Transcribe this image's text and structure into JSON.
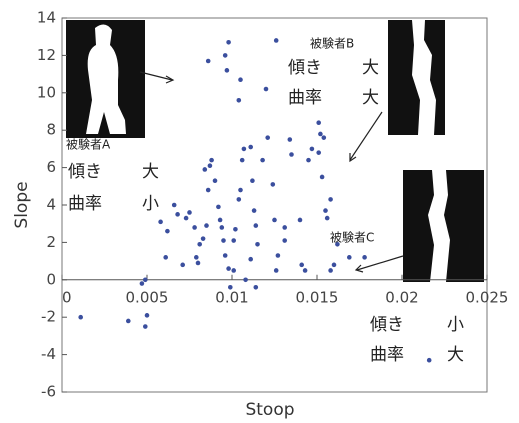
{
  "chart_data": {
    "type": "scatter",
    "x_label": "Stoop",
    "y_label": "Slope",
    "color": "#3b4f9e",
    "xlim": [
      0,
      0.025
    ],
    "ylim": [
      -6,
      14
    ],
    "xticks": [
      0,
      0.005,
      0.01,
      0.015,
      0.02,
      0.025
    ],
    "yticks": [
      -6,
      -4,
      -2,
      0,
      2,
      4,
      6,
      8,
      10,
      12,
      14
    ],
    "x": [
      0.0011,
      0.0039,
      0.0049,
      0.005,
      0.0049,
      0.0047,
      0.0061,
      0.0062,
      0.0058,
      0.0066,
      0.0068,
      0.0071,
      0.0073,
      0.0075,
      0.0078,
      0.0079,
      0.008,
      0.0081,
      0.0083,
      0.0085,
      0.0086,
      0.0084,
      0.0087,
      0.0088,
      0.009,
      0.0092,
      0.0093,
      0.0094,
      0.0095,
      0.0096,
      0.0098,
      0.0099,
      0.0101,
      0.0101,
      0.0102,
      0.0104,
      0.0105,
      0.0106,
      0.0107,
      0.0104,
      0.0105,
      0.0096,
      0.0098,
      0.0097,
      0.0086,
      0.0111,
      0.0112,
      0.0113,
      0.0114,
      0.0115,
      0.0111,
      0.0118,
      0.012,
      0.0121,
      0.0124,
      0.0125,
      0.0126,
      0.0127,
      0.0131,
      0.0131,
      0.0134,
      0.0135,
      0.0126,
      0.0108,
      0.0114,
      0.014,
      0.0141,
      0.0143,
      0.0145,
      0.0147,
      0.0151,
      0.0152,
      0.0153,
      0.0154,
      0.0155,
      0.0156,
      0.0151,
      0.0158,
      0.016,
      0.0162,
      0.0158,
      0.0169,
      0.0178,
      0.0216
    ],
    "values": [
      -2.0,
      -2.2,
      -2.5,
      -1.9,
      0.0,
      -0.2,
      1.2,
      2.6,
      3.1,
      4.0,
      3.5,
      0.8,
      3.3,
      3.6,
      2.8,
      1.2,
      0.9,
      1.9,
      2.2,
      2.9,
      4.8,
      5.9,
      6.1,
      6.4,
      5.3,
      3.9,
      3.2,
      2.8,
      2.1,
      1.3,
      0.6,
      -0.4,
      0.5,
      2.1,
      2.7,
      4.3,
      4.8,
      6.4,
      7.0,
      9.6,
      10.7,
      12.0,
      12.7,
      11.2,
      11.7,
      7.1,
      5.3,
      3.7,
      2.9,
      1.9,
      1.1,
      6.4,
      10.2,
      7.6,
      5.1,
      3.2,
      0.5,
      1.3,
      2.8,
      2.1,
      7.5,
      6.7,
      12.8,
      0.0,
      -0.4,
      3.2,
      0.8,
      0.5,
      6.4,
      7.0,
      6.8,
      7.8,
      5.5,
      7.6,
      3.7,
      3.3,
      8.4,
      0.5,
      0.8,
      1.9,
      4.3,
      1.2,
      1.2,
      -4.3
    ],
    "annotations": [
      {
        "label": "被験者A",
        "rows": [
          {
            "name": "傾き",
            "level": "大"
          },
          {
            "name": "曲率",
            "level": "小"
          }
        ]
      },
      {
        "label": "被験者B",
        "rows": [
          {
            "name": "傾き",
            "level": "大"
          },
          {
            "name": "曲率",
            "level": "大"
          }
        ]
      },
      {
        "label": "被験者C",
        "rows": [
          {
            "name": "傾き",
            "level": "小"
          },
          {
            "name": "曲率",
            "level": "大"
          }
        ]
      }
    ]
  }
}
